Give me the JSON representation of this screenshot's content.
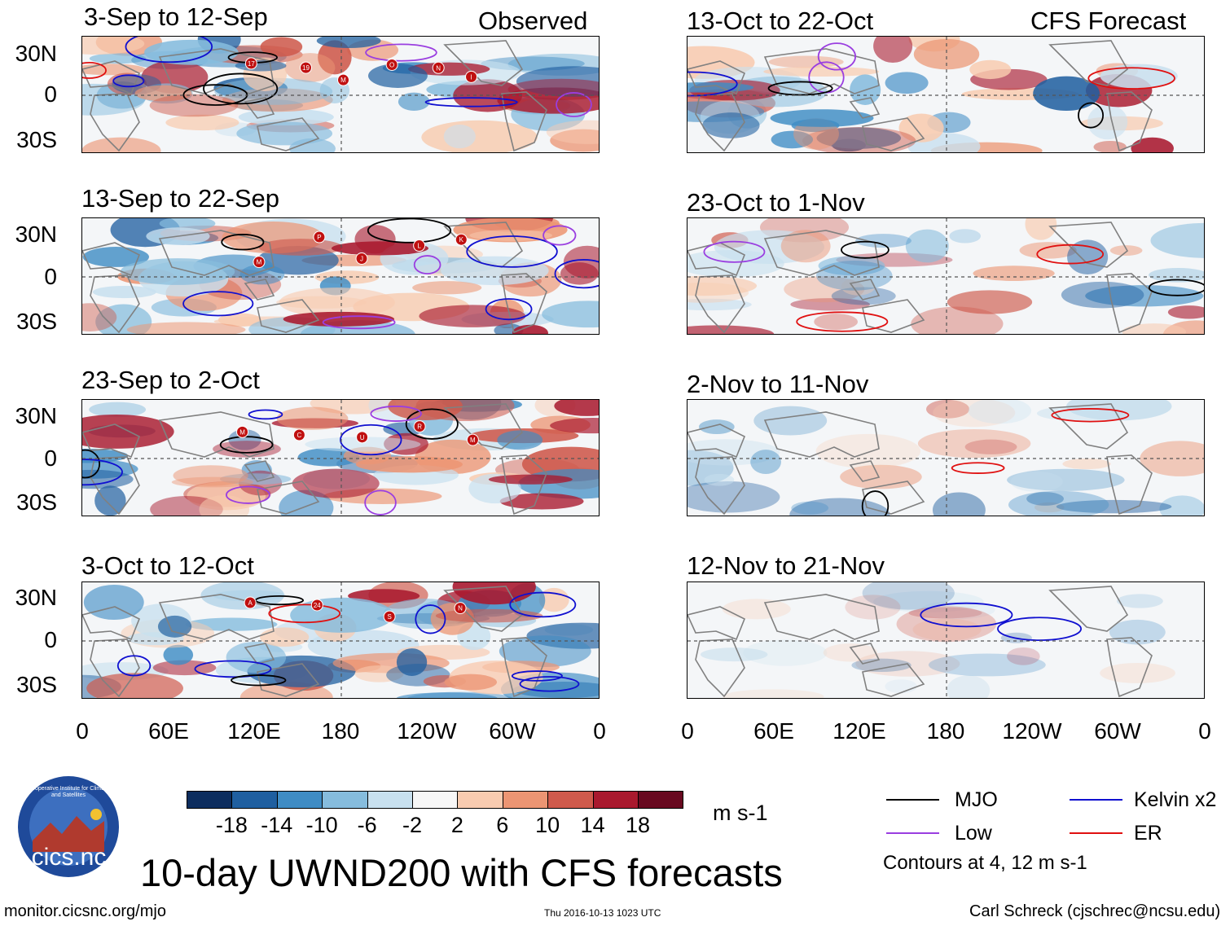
{
  "headers": {
    "observed": "Observed",
    "forecast": "CFS Forecast"
  },
  "lat_labels": [
    "30N",
    "0",
    "30S"
  ],
  "lon_labels": [
    "0",
    "60E",
    "120E",
    "180",
    "120W",
    "60W",
    "0"
  ],
  "observed_panels": [
    {
      "title": "3-Sep to 12-Sep",
      "storms": [
        "17",
        "19",
        "M",
        "O",
        "N",
        "I"
      ]
    },
    {
      "title": "13-Sep to 22-Sep",
      "storms": [
        "M",
        "P",
        "J",
        "L",
        "K"
      ]
    },
    {
      "title": "23-Sep to 2-Oct",
      "storms": [
        "M",
        "C",
        "U",
        "R",
        "M"
      ]
    },
    {
      "title": "3-Oct to 12-Oct",
      "storms": [
        "A",
        "24",
        "S",
        "N"
      ]
    }
  ],
  "forecast_panels": [
    {
      "title": "13-Oct to 22-Oct"
    },
    {
      "title": "23-Oct to 1-Nov"
    },
    {
      "title": "2-Nov to 11-Nov"
    },
    {
      "title": "12-Nov to 21-Nov"
    }
  ],
  "colorbar": {
    "labels": [
      "-18",
      "-14",
      "-10",
      "-6",
      "-2",
      "2",
      "6",
      "10",
      "14",
      "18"
    ],
    "colors": [
      "#0d2d5e",
      "#1f5fa0",
      "#3f8cc4",
      "#86bcdd",
      "#c8e0ef",
      "#f7f7f7",
      "#f8cbb0",
      "#ec9573",
      "#cf5a4c",
      "#a9192e",
      "#680920"
    ],
    "units": "m s-1"
  },
  "legend": {
    "items": [
      {
        "label": "MJO",
        "color": "#000000"
      },
      {
        "label": "Kelvin x2",
        "color": "#1010d0"
      },
      {
        "label": "Low",
        "color": "#9a3ee0"
      },
      {
        "label": "ER",
        "color": "#e01010"
      }
    ],
    "note": "Contours at 4, 12 m s-1"
  },
  "logo": {
    "text": "cics.nc",
    "ring_text": "Cooperative Institute for Climate and Satellites"
  },
  "title": "10-day UWND200 with CFS forecasts",
  "footer": {
    "left": "monitor.cicsnc.org/mjo",
    "center": "Thu 2016-10-13 1023 UTC",
    "right": "Carl Schreck (cjschrec@ncsu.edu)"
  }
}
